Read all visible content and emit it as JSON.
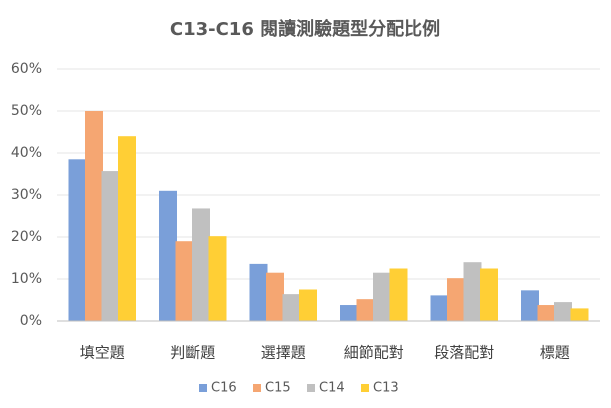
{
  "chart_data": {
    "type": "bar",
    "title": "C13-C16 閱讀測驗題型分配比例",
    "categories": [
      "填空題",
      "判斷題",
      "選擇題",
      "細節配對",
      "段落配對",
      "標題"
    ],
    "series": [
      {
        "name": "C16",
        "color": "#7a9fd9",
        "values": [
          38.5,
          31,
          13.6,
          3.8,
          6.1,
          7.3
        ]
      },
      {
        "name": "C15",
        "color": "#f5a672",
        "values": [
          50,
          19,
          11.5,
          5.2,
          10.2,
          3.8
        ]
      },
      {
        "name": "C14",
        "color": "#c0c0c0",
        "values": [
          35.7,
          26.8,
          6.4,
          11.5,
          14,
          4.5
        ]
      },
      {
        "name": "C13",
        "color": "#ffcf35",
        "values": [
          44,
          20.2,
          7.5,
          12.5,
          12.5,
          3
        ]
      }
    ],
    "ylim": [
      0,
      60
    ],
    "yticks": [
      {
        "value": 0,
        "label": "0%"
      },
      {
        "value": 10,
        "label": "10%"
      },
      {
        "value": 20,
        "label": "20%"
      },
      {
        "value": 30,
        "label": "30%"
      },
      {
        "value": 40,
        "label": "40%"
      },
      {
        "value": 50,
        "label": "50%"
      },
      {
        "value": 60,
        "label": "60%"
      }
    ],
    "grid": true,
    "legend": "bottom"
  }
}
